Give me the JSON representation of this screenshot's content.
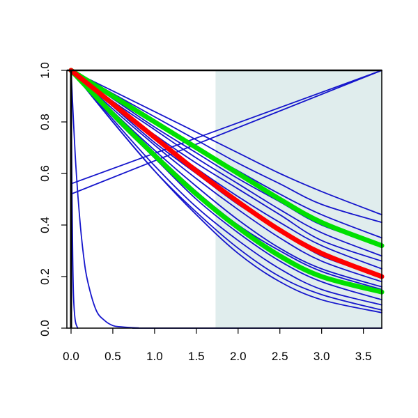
{
  "chart_data": {
    "type": "line",
    "title": "",
    "xlabel": "",
    "ylabel": "",
    "xlim": [
      -0.05,
      3.72
    ],
    "ylim": [
      0.0,
      1.0
    ],
    "xticks": [
      "0.0",
      "0.5",
      "1.0",
      "1.5",
      "2.0",
      "2.5",
      "3.0",
      "3.5"
    ],
    "yticks": [
      "0.0",
      "0.2",
      "0.4",
      "0.6",
      "0.8",
      "1.0"
    ],
    "shaded_region": {
      "x_from": 1.73,
      "x_to": 3.72,
      "color": "#e0eded"
    },
    "colors": {
      "thin": "#1515cc",
      "highlight_red": "#ff0000",
      "highlight_green": "#00e000",
      "axis": "#000000"
    },
    "grid": false,
    "legend": "none",
    "series": [
      {
        "x": [
          0,
          0.01,
          0.02,
          0.03,
          0.05,
          0.08
        ],
        "y": [
          1.0,
          0.55,
          0.27,
          0.12,
          0.03,
          0.0
        ]
      },
      {
        "x": [
          0,
          0.05,
          0.1,
          0.15,
          0.2,
          0.3,
          0.4,
          0.5,
          0.6,
          0.8,
          1.0,
          3.72
        ],
        "y": [
          1.0,
          0.67,
          0.44,
          0.28,
          0.18,
          0.07,
          0.03,
          0.01,
          0.005,
          0.001,
          0.0,
          0.0
        ]
      },
      {
        "x": [
          0,
          3.72
        ],
        "y": [
          0.56,
          1.0
        ]
      },
      {
        "x": [
          0,
          3.72
        ],
        "y": [
          0.52,
          1.0
        ]
      },
      {
        "x": [
          0,
          0.5,
          1,
          1.5,
          2,
          2.5,
          3,
          3.72
        ],
        "y": [
          1.0,
          0.92,
          0.84,
          0.76,
          0.68,
          0.6,
          0.53,
          0.44
        ]
      },
      {
        "x": [
          0,
          0.5,
          1,
          1.5,
          2,
          2.5,
          3,
          3.72
        ],
        "y": [
          1.0,
          0.91,
          0.82,
          0.73,
          0.64,
          0.56,
          0.48,
          0.41
        ]
      },
      {
        "x": [
          0,
          0.5,
          1,
          1.5,
          2,
          2.5,
          3,
          3.72
        ],
        "y": [
          1.0,
          0.9,
          0.8,
          0.7,
          0.61,
          0.52,
          0.44,
          0.35
        ]
      },
      {
        "x": [
          0,
          0.5,
          1,
          1.5,
          2,
          2.5,
          3,
          3.72
        ],
        "y": [
          1.0,
          0.89,
          0.78,
          0.68,
          0.58,
          0.49,
          0.4,
          0.32
        ]
      },
      {
        "x": [
          0,
          0.5,
          1,
          1.5,
          2,
          2.5,
          3,
          3.72
        ],
        "y": [
          1.0,
          0.88,
          0.77,
          0.66,
          0.56,
          0.46,
          0.37,
          0.28
        ]
      },
      {
        "x": [
          0,
          0.5,
          1,
          1.5,
          2,
          2.5,
          3,
          3.72
        ],
        "y": [
          1.0,
          0.87,
          0.75,
          0.64,
          0.54,
          0.44,
          0.34,
          0.26
        ]
      },
      {
        "x": [
          0,
          0.5,
          1,
          1.5,
          2,
          2.5,
          3,
          3.72
        ],
        "y": [
          1.0,
          0.87,
          0.74,
          0.62,
          0.51,
          0.41,
          0.32,
          0.23
        ]
      },
      {
        "x": [
          0,
          0.5,
          1,
          1.5,
          2,
          2.5,
          3,
          3.72
        ],
        "y": [
          1.0,
          0.86,
          0.72,
          0.6,
          0.48,
          0.38,
          0.28,
          0.2
        ]
      },
      {
        "x": [
          0,
          0.5,
          1,
          1.5,
          2,
          2.5,
          3,
          3.72
        ],
        "y": [
          1.0,
          0.85,
          0.71,
          0.58,
          0.46,
          0.35,
          0.26,
          0.18
        ]
      },
      {
        "x": [
          0,
          0.5,
          1,
          1.5,
          2,
          2.5,
          3,
          3.72
        ],
        "y": [
          1.0,
          0.84,
          0.69,
          0.55,
          0.42,
          0.31,
          0.23,
          0.16
        ]
      },
      {
        "x": [
          0,
          0.5,
          1,
          1.5,
          2,
          2.5,
          3,
          3.72
        ],
        "y": [
          1.0,
          0.84,
          0.68,
          0.53,
          0.4,
          0.3,
          0.22,
          0.15
        ]
      },
      {
        "x": [
          0,
          0.5,
          1,
          1.5,
          2,
          2.5,
          3,
          3.72
        ],
        "y": [
          1.0,
          0.82,
          0.66,
          0.5,
          0.37,
          0.26,
          0.18,
          0.11
        ]
      },
      {
        "x": [
          0,
          0.5,
          1,
          1.5,
          2,
          2.5,
          3,
          3.72
        ],
        "y": [
          1.0,
          0.81,
          0.63,
          0.47,
          0.34,
          0.23,
          0.15,
          0.09
        ]
      },
      {
        "x": [
          0,
          0.5,
          1,
          1.5,
          2,
          2.5,
          3,
          3.72
        ],
        "y": [
          1.0,
          0.8,
          0.61,
          0.45,
          0.31,
          0.2,
          0.13,
          0.07
        ]
      },
      {
        "x": [
          0,
          0.5,
          1,
          1.5,
          2,
          2.5,
          3,
          3.72
        ],
        "y": [
          1.0,
          0.8,
          0.61,
          0.44,
          0.29,
          0.18,
          0.11,
          0.06
        ]
      },
      {
        "x": [
          0,
          0.5,
          1,
          1.5,
          2,
          2.5,
          3,
          3.72
        ],
        "y": [
          1.0,
          0.9,
          0.8,
          0.7,
          0.6,
          0.5,
          0.41,
          0.32
        ],
        "highlight": "green"
      },
      {
        "x": [
          0,
          0.5,
          1,
          1.5,
          2,
          2.5,
          3,
          3.72
        ],
        "y": [
          1.0,
          0.83,
          0.67,
          0.52,
          0.39,
          0.28,
          0.2,
          0.14
        ],
        "highlight": "green"
      },
      {
        "x": [
          0,
          0.5,
          1,
          1.5,
          2,
          2.5,
          3,
          3.72
        ],
        "y": [
          1.0,
          0.87,
          0.74,
          0.61,
          0.49,
          0.38,
          0.29,
          0.2
        ],
        "highlight": "red"
      }
    ]
  }
}
